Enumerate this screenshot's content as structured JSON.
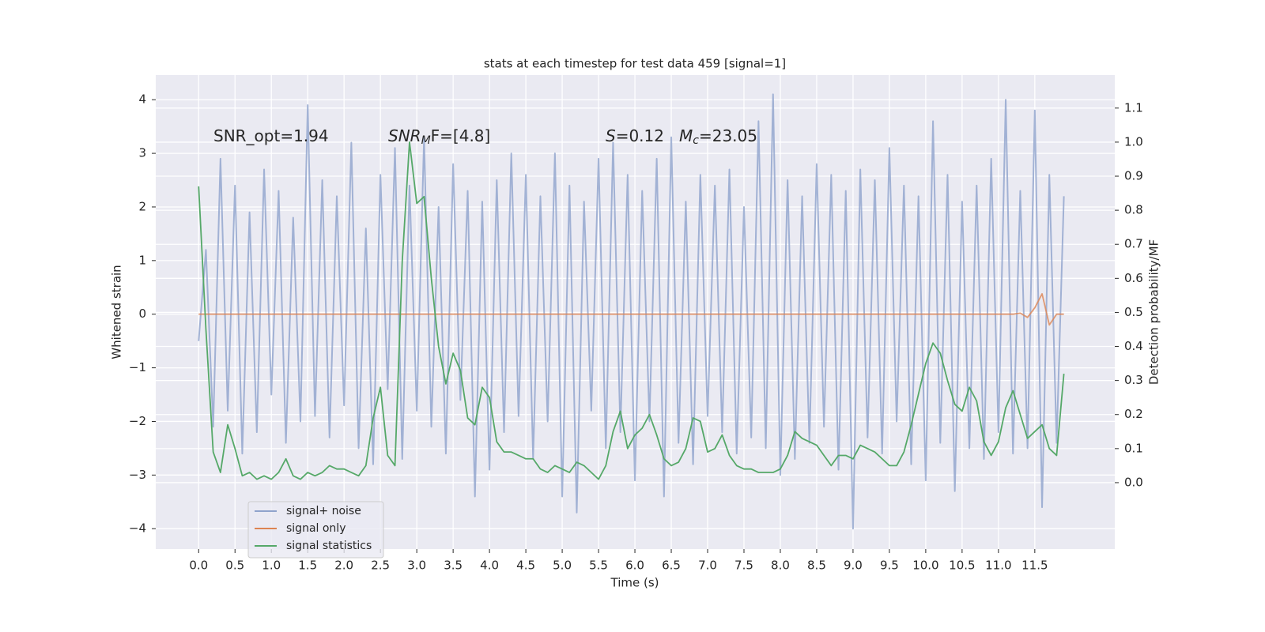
{
  "chart_data": {
    "type": "line",
    "title": "stats at each timestep for test data 459 [signal=1]",
    "xlabel": "Time (s)",
    "ylabel": "Whitened strain",
    "y2label": "Detection probability/MF",
    "annotations": [
      {
        "text": "SNR_opt=1.94"
      },
      {
        "italic": "SNR",
        "sub": "M",
        "text": "F=[4.8]"
      },
      {
        "italic": "S",
        "text": "=0.12"
      },
      {
        "italic": "M",
        "sub": "c",
        "text": "=23.05"
      }
    ],
    "x": [
      0,
      0.1,
      0.2,
      0.3,
      0.4,
      0.5,
      0.6,
      0.7,
      0.8,
      0.9,
      1,
      1.1,
      1.2,
      1.3,
      1.4,
      1.5,
      1.6,
      1.7,
      1.8,
      1.9,
      2,
      2.1,
      2.2,
      2.3,
      2.4,
      2.5,
      2.6,
      2.7,
      2.8,
      2.9,
      3,
      3.1,
      3.2,
      3.3,
      3.4,
      3.5,
      3.6,
      3.7,
      3.8,
      3.9,
      4,
      4.1,
      4.2,
      4.3,
      4.4,
      4.5,
      4.6,
      4.7,
      4.8,
      4.9,
      5,
      5.1,
      5.2,
      5.3,
      5.4,
      5.5,
      5.6,
      5.7,
      5.8,
      5.9,
      6,
      6.1,
      6.2,
      6.3,
      6.4,
      6.5,
      6.6,
      6.7,
      6.8,
      6.9,
      7,
      7.1,
      7.2,
      7.3,
      7.4,
      7.5,
      7.6,
      7.7,
      7.8,
      7.9,
      8,
      8.1,
      8.2,
      8.3,
      8.4,
      8.5,
      8.6,
      8.7,
      8.8,
      8.9,
      9,
      9.1,
      9.2,
      9.3,
      9.4,
      9.5,
      9.6,
      9.7,
      9.8,
      9.9,
      10,
      10.1,
      10.2,
      10.3,
      10.4,
      10.5,
      10.6,
      10.7,
      10.8,
      10.9,
      11,
      11.1,
      11.2,
      11.3,
      11.4,
      11.5,
      11.6,
      11.7,
      11.8,
      11.9
    ],
    "series": [
      {
        "name": "signal+ noise",
        "color": "#8fa3cc",
        "axis": "y",
        "values": [
          -0.5,
          1.2,
          -2.1,
          2.9,
          -1.8,
          2.4,
          -2.6,
          1.9,
          -2.2,
          2.7,
          -1.5,
          2.3,
          -2.4,
          1.8,
          -2.0,
          3.9,
          -1.9,
          2.5,
          -2.3,
          2.2,
          -1.7,
          3.2,
          -2.5,
          1.6,
          -2.8,
          2.6,
          -1.4,
          3.1,
          -2.7,
          2.4,
          -1.8,
          3.3,
          -2.1,
          2.0,
          -2.6,
          2.8,
          -1.6,
          2.3,
          -3.4,
          2.1,
          -2.9,
          2.5,
          -2.2,
          3.0,
          -1.9,
          2.6,
          -2.7,
          2.2,
          -2.0,
          3.0,
          -3.4,
          2.4,
          -3.7,
          2.1,
          -1.8,
          2.9,
          -2.5,
          3.2,
          -2.2,
          2.6,
          -3.1,
          2.3,
          -2.0,
          2.9,
          -3.4,
          3.3,
          -2.4,
          2.1,
          -2.8,
          2.6,
          -1.9,
          2.4,
          -2.2,
          2.7,
          -2.6,
          2.0,
          -2.3,
          3.6,
          -2.5,
          4.1,
          -3.0,
          2.5,
          -2.7,
          2.2,
          -2.4,
          2.8,
          -2.1,
          2.6,
          -2.9,
          2.3,
          -4.0,
          2.7,
          -2.3,
          2.5,
          -2.6,
          3.1,
          -2.0,
          2.4,
          -2.8,
          2.2,
          -3.1,
          3.6,
          -2.4,
          2.6,
          -3.3,
          2.1,
          -2.5,
          2.4,
          -2.7,
          2.9,
          -2.2,
          4.0,
          -2.6,
          2.3,
          -2.5,
          3.8,
          -3.6,
          2.6,
          -2.4,
          2.2
        ]
      },
      {
        "name": "signal only",
        "color": "#dd8452",
        "axis": "y",
        "values": [
          0,
          0,
          0,
          0,
          0,
          0,
          0,
          0,
          0,
          0,
          0,
          0,
          0,
          0,
          0,
          0,
          0,
          0,
          0,
          0,
          0,
          0,
          0,
          0,
          0,
          0,
          0,
          0,
          0,
          0,
          0,
          0,
          0,
          0,
          0,
          0,
          0,
          0,
          0,
          0,
          0,
          0,
          0,
          0,
          0,
          0,
          0,
          0,
          0,
          0,
          0,
          0,
          0,
          0,
          0,
          0,
          0,
          0,
          0,
          0,
          0,
          0,
          0,
          0,
          0,
          0,
          0,
          0,
          0,
          0,
          0,
          0,
          0,
          0,
          0,
          0,
          0,
          0,
          0,
          0,
          0,
          0,
          0,
          0,
          0,
          0,
          0,
          0,
          0,
          0,
          0,
          0,
          0,
          0,
          0,
          0,
          0,
          0,
          0,
          0,
          0,
          0,
          0,
          0,
          0,
          0,
          0,
          0,
          0,
          0,
          0,
          0,
          0,
          0.02,
          -0.06,
          0.12,
          0.38,
          -0.2,
          0,
          0
        ]
      },
      {
        "name": "signal statistics",
        "color": "#55a868",
        "axis": "y2",
        "values": [
          0.87,
          0.45,
          0.09,
          0.03,
          0.17,
          0.1,
          0.02,
          0.03,
          0.01,
          0.02,
          0.01,
          0.03,
          0.07,
          0.02,
          0.01,
          0.03,
          0.02,
          0.03,
          0.05,
          0.04,
          0.04,
          0.03,
          0.02,
          0.05,
          0.19,
          0.28,
          0.08,
          0.05,
          0.65,
          1.0,
          0.82,
          0.84,
          0.6,
          0.4,
          0.29,
          0.38,
          0.33,
          0.19,
          0.17,
          0.28,
          0.25,
          0.12,
          0.09,
          0.09,
          0.08,
          0.07,
          0.07,
          0.04,
          0.03,
          0.05,
          0.04,
          0.03,
          0.06,
          0.05,
          0.03,
          0.01,
          0.05,
          0.15,
          0.21,
          0.1,
          0.14,
          0.16,
          0.2,
          0.14,
          0.07,
          0.05,
          0.06,
          0.1,
          0.19,
          0.18,
          0.09,
          0.1,
          0.14,
          0.08,
          0.05,
          0.04,
          0.04,
          0.03,
          0.03,
          0.03,
          0.04,
          0.08,
          0.15,
          0.13,
          0.12,
          0.11,
          0.08,
          0.05,
          0.08,
          0.08,
          0.07,
          0.11,
          0.1,
          0.09,
          0.07,
          0.05,
          0.05,
          0.09,
          0.17,
          0.26,
          0.35,
          0.41,
          0.38,
          0.3,
          0.23,
          0.21,
          0.28,
          0.24,
          0.12,
          0.08,
          0.12,
          0.22,
          0.27,
          0.2,
          0.13,
          0.15,
          0.17,
          0.1,
          0.08,
          0.32
        ]
      }
    ],
    "xlim": [
      -0.59,
      12.6
    ],
    "xticks": [
      {
        "value": 0,
        "label": "0.0"
      },
      0.5,
      {
        "value": 1,
        "label": "1.0"
      },
      1.5,
      {
        "value": 2,
        "label": "2.0"
      },
      2.5,
      {
        "value": 3,
        "label": "3.0"
      },
      3.5,
      {
        "value": 4,
        "label": "4.0"
      },
      4.5,
      {
        "value": 5,
        "label": "5.0"
      },
      5.5,
      {
        "value": 6,
        "label": "6.0"
      },
      6.5,
      {
        "value": 7,
        "label": "7.0"
      },
      7.5,
      {
        "value": 8,
        "label": "8.0"
      },
      8.5,
      {
        "value": 9,
        "label": "9.0"
      },
      9.5,
      {
        "value": 10,
        "label": "10.0"
      },
      10.5,
      {
        "value": 11,
        "label": "11.0"
      },
      11.5
    ],
    "ylim": [
      -4.38,
      4.46
    ],
    "yticks": [
      {
        "value": -4,
        "label": "−4"
      },
      {
        "value": -3,
        "label": "−3"
      },
      {
        "value": -2,
        "label": "−2"
      },
      {
        "value": -1,
        "label": "−1"
      },
      0,
      1,
      2,
      3,
      4
    ],
    "y2lim": [
      -0.195,
      1.197
    ],
    "y2ticks": [
      {
        "value": 0,
        "label": "0.0"
      },
      0.1,
      0.2,
      0.3,
      0.4,
      0.5,
      0.6,
      0.7,
      0.8,
      0.9,
      {
        "value": 1,
        "label": "1.0"
      },
      1.1
    ],
    "grid": true,
    "legend": "lower left"
  }
}
